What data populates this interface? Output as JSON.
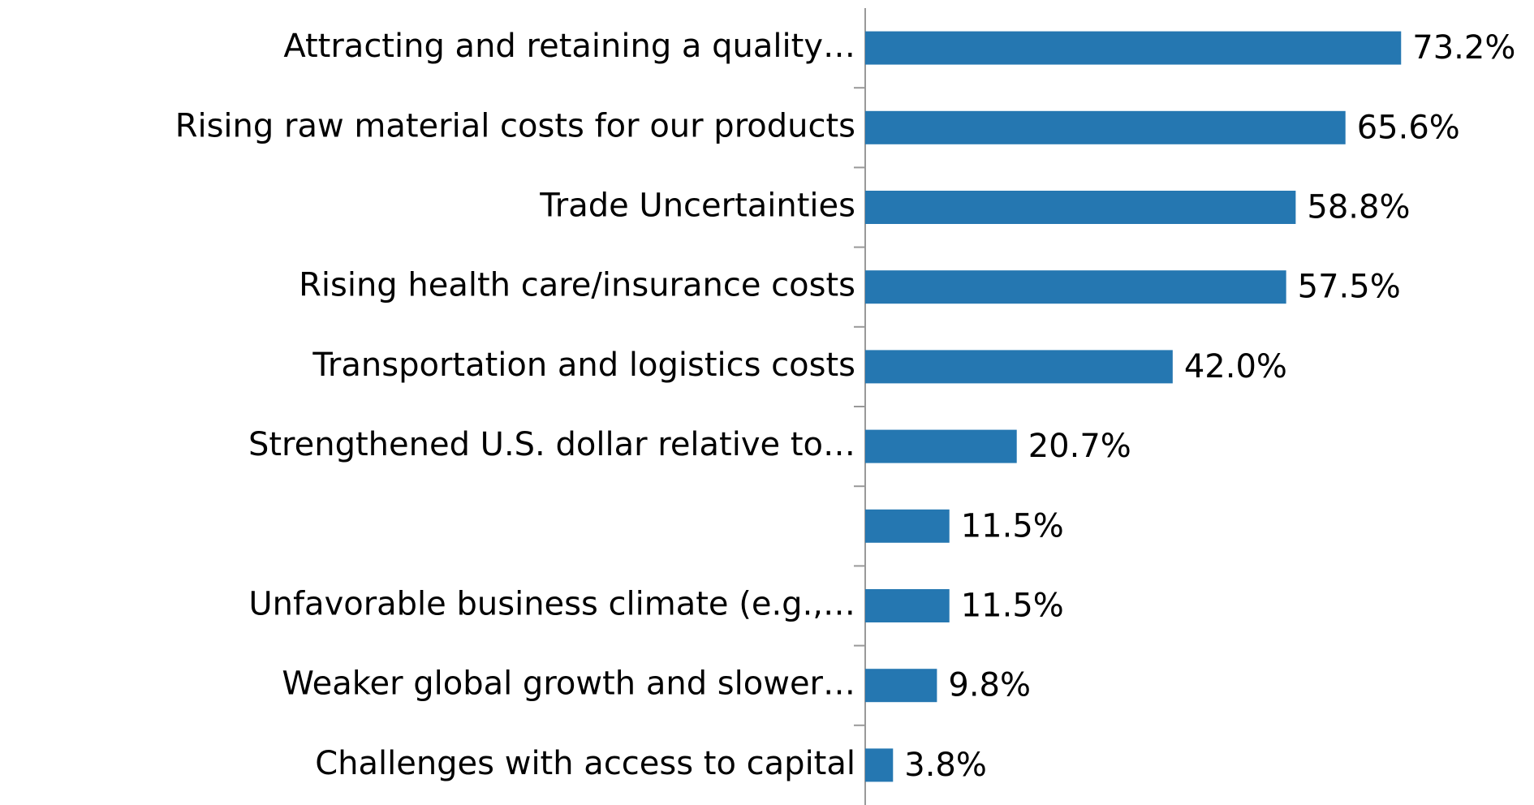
{
  "chart_data": {
    "type": "bar",
    "orientation": "horizontal",
    "categories": [
      "Attracting and retaining a quality…",
      "Rising raw material costs for our products",
      "Trade Uncertainties",
      "Rising health care/insurance costs",
      "Transportation and logistics costs",
      "Strengthened U.S. dollar relative to…",
      null,
      "Unfavorable business climate (e.g.,…",
      "Weaker global growth and slower…",
      "Challenges with access to capital"
    ],
    "values": [
      73.2,
      65.6,
      58.8,
      57.5,
      42.0,
      20.7,
      11.5,
      11.5,
      9.8,
      3.8
    ],
    "value_labels": [
      "73.2%",
      "65.6%",
      "58.8%",
      "57.5%",
      "42.0%",
      "20.7%",
      "11.5%",
      "11.5%",
      "9.8%",
      "3.8%"
    ],
    "color": "#2577b1"
  }
}
